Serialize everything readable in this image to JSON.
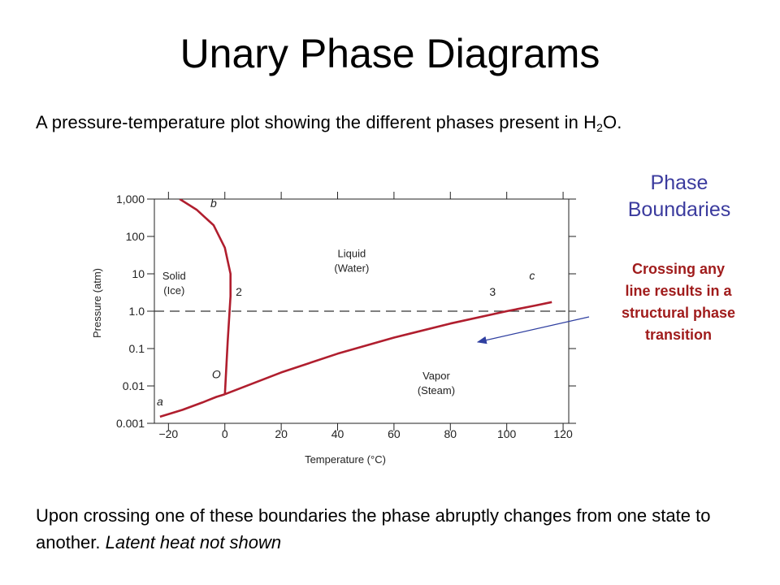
{
  "page": {
    "title": "Unary Phase Diagrams",
    "intro_main": "A pressure-temperature plot showing the different phases present in H",
    "intro_sub": "2",
    "intro_tail": "O.",
    "side_title_line1": "Phase",
    "side_title_line2": "Boundaries",
    "note": "Crossing any line results in a structural phase transition",
    "outro_main": "Upon crossing one of these boundaries the phase abruptly changes from one state to another. ",
    "outro_italic": "Latent heat not shown"
  },
  "colors": {
    "curve": "#b01e2e",
    "side_title": "#3b3b9e",
    "note": "#a01c1c",
    "arrow": "#2f3fa0"
  },
  "chart_data": {
    "type": "line",
    "xlabel": "Temperature (°C)",
    "ylabel": "Pressure (atm)",
    "xlim": [
      -25,
      122
    ],
    "ylim": [
      0.001,
      1000
    ],
    "yscale": "log",
    "x_ticks": [
      -20,
      0,
      20,
      40,
      60,
      80,
      100,
      120
    ],
    "x_tick_labels": [
      "−20",
      "0",
      "20",
      "40",
      "60",
      "80",
      "100",
      "120"
    ],
    "y_ticks": [
      0.001,
      0.01,
      0.1,
      1,
      10,
      100,
      1000
    ],
    "y_tick_labels": [
      "0.001",
      "0.01",
      "0.1",
      "1.0",
      "10",
      "100",
      "1,000"
    ],
    "series": [
      {
        "id": "solid-vapor",
        "points": [
          [
            -23,
            0.0015
          ],
          [
            -15,
            0.0023
          ],
          [
            -8,
            0.0036
          ],
          [
            -3,
            0.0051
          ],
          [
            0.01,
            0.006
          ]
        ]
      },
      {
        "id": "solid-liquid",
        "points": [
          [
            0.01,
            0.006
          ],
          [
            1,
            0.15
          ],
          [
            2,
            2.5
          ],
          [
            2,
            10
          ],
          [
            0,
            50
          ],
          [
            -4,
            200
          ],
          [
            -10,
            520
          ],
          [
            -16,
            1000
          ]
        ]
      },
      {
        "id": "liquid-vapor",
        "points": [
          [
            0.01,
            0.006
          ],
          [
            20,
            0.023
          ],
          [
            40,
            0.073
          ],
          [
            60,
            0.197
          ],
          [
            80,
            0.467
          ],
          [
            100,
            1.0
          ],
          [
            110,
            1.41
          ],
          [
            116,
            1.75
          ]
        ]
      }
    ],
    "reference_line": {
      "y": 1.0,
      "style": "dashed"
    },
    "annotations": [
      {
        "text": "b",
        "x": -4,
        "y": 600,
        "italic": true
      },
      {
        "text": "a",
        "x": -23,
        "y": 0.003,
        "italic": true
      },
      {
        "text": "O",
        "x": -3,
        "y": 0.016,
        "italic": true
      },
      {
        "text": "c",
        "x": 109,
        "y": 7,
        "italic": true
      },
      {
        "text": "2",
        "x": 5,
        "y": 2.6
      },
      {
        "text": "3",
        "x": 95,
        "y": 2.6
      }
    ],
    "region_labels": [
      {
        "lines": [
          "Solid",
          "(Ice)"
        ],
        "x": -18,
        "y": 7
      },
      {
        "lines": [
          "Liquid",
          "(Water)"
        ],
        "x": 45,
        "y": 28
      },
      {
        "lines": [
          "Vapor",
          "(Steam)"
        ],
        "x": 75,
        "y": 0.015
      }
    ]
  }
}
